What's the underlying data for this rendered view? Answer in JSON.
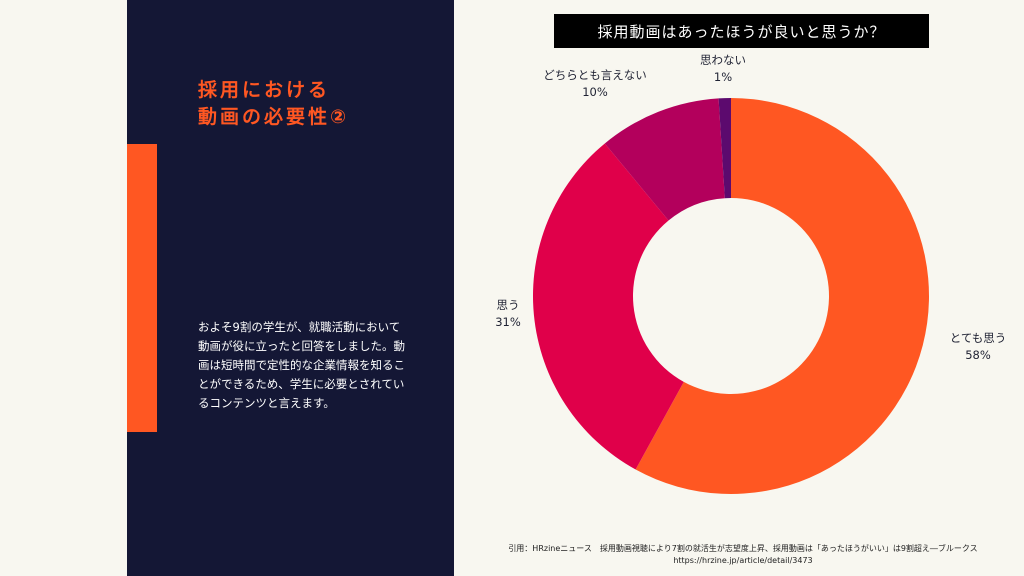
{
  "left": {
    "heading_lines": [
      "採用における",
      "動画の必要性②"
    ],
    "body_lines": [
      "およそ9割の学生が、就職活動において",
      "動画が役に立ったと回答をしました。動",
      "画は短時間で定性的な企業情報を知るこ",
      "とができるため、学生に必要とされてい",
      "るコンテンツと言えます。"
    ]
  },
  "colors": {
    "background": "#f8f7f0",
    "navy": "#141735",
    "accent": "#ff5722"
  },
  "chart_data": {
    "type": "pie",
    "variant": "donut",
    "title": "採用動画はあったほうが良いと思うか？",
    "slices": [
      {
        "label": "とても思う",
        "value": 58,
        "value_label": "58%",
        "color": "#ff5722"
      },
      {
        "label": "思う",
        "value": 31,
        "value_label": "31%",
        "color": "#e0004a"
      },
      {
        "label": "どちらとも言えない",
        "value": 10,
        "value_label": "10%",
        "color": "#b3005c"
      },
      {
        "label": "思わない",
        "value": 1,
        "value_label": "1%",
        "color": "#5c0a6e"
      }
    ]
  },
  "citation": {
    "line1": "引用：HRzineニュース　採用動画視聴により7割の就活生が志望度上昇、採用動画は「あったほうがいい」は9割超え―ブルークス",
    "line2": "https://hrzine.jp/article/detail/3473"
  }
}
